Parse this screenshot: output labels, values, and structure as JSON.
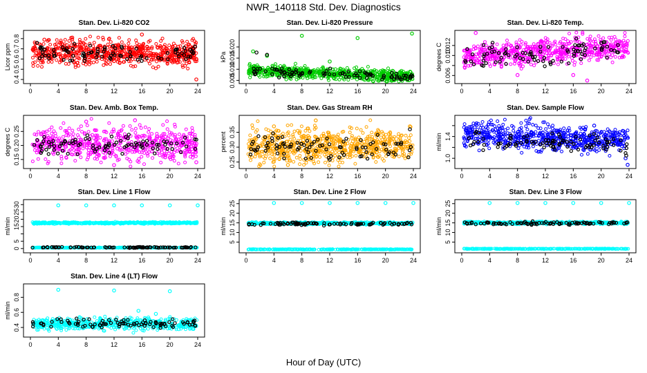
{
  "page": {
    "title": "NWR_140118  Std. Dev. Diagnostics",
    "xlabel": "Hour of Day (UTC)"
  },
  "chart_data": [
    {
      "type": "scatter",
      "title": "Stan. Dev. Li-820 CO2",
      "ylabel": "Licor ppm",
      "xlim": [
        0,
        24
      ],
      "ylim": [
        0.38,
        0.86
      ],
      "xticks": [
        "0",
        "4",
        "8",
        "12",
        "16",
        "20",
        "24"
      ],
      "yticks": [
        0.4,
        0.5,
        0.6,
        0.7,
        0.8
      ],
      "ytick_labels": [
        "0.4",
        "0.5",
        "0.6",
        "0.7",
        "0.8"
      ],
      "series": [
        {
          "color": "#ff0000",
          "style": "dense-cloud",
          "center": [
            0.66,
            0.66
          ],
          "spread": 0.06,
          "n": 700,
          "outliers": [
            [
              2,
              0.79
            ],
            [
              6,
              0.81
            ],
            [
              16,
              0.84
            ],
            [
              23.8,
              0.4
            ],
            [
              12,
              0.58
            ]
          ]
        },
        {
          "color": "#000000",
          "style": "overlay",
          "center": [
            0.66,
            0.66
          ],
          "spread": 0.04,
          "n": 90
        }
      ]
    },
    {
      "type": "scatter",
      "title": "Stan. Dev. Li-820 Pressure",
      "ylabel": "kPa",
      "xlim": [
        0,
        24
      ],
      "ylim": [
        0.0045,
        0.0265
      ],
      "xticks": [
        "0",
        "4",
        "8",
        "12",
        "16",
        "20",
        "24"
      ],
      "yticks": [
        0.005,
        0.01,
        0.015,
        0.02
      ],
      "ytick_labels": [
        "0.005",
        "0.010",
        "0.015",
        "0.020"
      ],
      "series": [
        {
          "color": "#00cc00",
          "style": "dense-cloud",
          "center": [
            0.0095,
            0.0068
          ],
          "spread": 0.0013,
          "n": 700,
          "outliers": [
            [
              1,
              0.018
            ],
            [
              3,
              0.016
            ],
            [
              8,
              0.025
            ],
            [
              16,
              0.024
            ],
            [
              23.8,
              0.026
            ],
            [
              12,
              0.0135
            ]
          ]
        },
        {
          "color": "#000000",
          "style": "overlay",
          "center": [
            0.0092,
            0.0064
          ],
          "spread": 0.0009,
          "n": 90,
          "outliers": [
            [
              1.5,
              0.0175
            ],
            [
              3,
              0.0165
            ]
          ]
        }
      ]
    },
    {
      "type": "scatter",
      "title": "Stan. Dev. Li-820 Temp.",
      "ylabel": "degrees C",
      "xlim": [
        0,
        24
      ],
      "ylim": [
        0.0048,
        0.0146
      ],
      "xticks": [
        "0",
        "4",
        "8",
        "12",
        "16",
        "20",
        "24"
      ],
      "yticks": [
        0.006,
        0.008,
        0.01,
        0.012
      ],
      "ytick_labels": [
        "0.006",
        "",
        "0.010",
        "0.012"
      ],
      "series": [
        {
          "color": "#ff00ff",
          "style": "dense-cloud",
          "center": [
            0.0098,
            0.0118
          ],
          "spread": 0.0012,
          "n": 650,
          "outliers": [
            [
              2,
              0.0145
            ],
            [
              8,
              0.0061
            ],
            [
              16,
              0.0061
            ],
            [
              18,
              0.005
            ]
          ]
        },
        {
          "color": "#000000",
          "style": "overlay",
          "center": [
            0.0095,
            0.0115
          ],
          "spread": 0.0012,
          "n": 90
        }
      ]
    },
    {
      "type": "scatter",
      "title": "Stan. Dev. Amb. Box Temp.",
      "ylabel": "degrees C",
      "xlim": [
        0,
        24
      ],
      "ylim": [
        0.125,
        0.3
      ],
      "xticks": [
        "0",
        "4",
        "8",
        "12",
        "16",
        "20",
        "24"
      ],
      "yticks": [
        0.15,
        0.2,
        0.25
      ],
      "ytick_labels": [
        "0.15",
        "0.20",
        "0.25"
      ],
      "series": [
        {
          "color": "#ff00ff",
          "style": "dense-cloud",
          "center": [
            0.205,
            0.205
          ],
          "spread": 0.03,
          "n": 600,
          "outliers": [
            [
              15,
              0.29
            ],
            [
              23.8,
              0.14
            ],
            [
              8,
              0.285
            ],
            [
              12,
              0.13
            ]
          ]
        },
        {
          "color": "#000000",
          "style": "overlay",
          "center": [
            0.2,
            0.2
          ],
          "spread": 0.018,
          "n": 90
        }
      ]
    },
    {
      "type": "scatter",
      "title": "Stan. Dev. Gas Stream RH",
      "ylabel": "percent",
      "xlim": [
        0,
        24
      ],
      "ylim": [
        0.235,
        0.4
      ],
      "xticks": [
        "0",
        "4",
        "8",
        "12",
        "16",
        "20",
        "24"
      ],
      "yticks": [
        0.25,
        0.3,
        0.35
      ],
      "ytick_labels": [
        "0.25",
        "0.30",
        "0.35"
      ],
      "series": [
        {
          "color": "#ffa500",
          "style": "dense-cloud",
          "center": [
            0.305,
            0.305
          ],
          "spread": 0.028,
          "n": 700,
          "outliers": [
            [
              10,
              0.39
            ],
            [
              6,
              0.24
            ],
            [
              23.5,
              0.37
            ],
            [
              4,
              0.37
            ]
          ]
        },
        {
          "color": "#000000",
          "style": "overlay",
          "center": [
            0.3,
            0.3
          ],
          "spread": 0.02,
          "n": 90,
          "outliers": [
            [
              12,
              0.258
            ],
            [
              23.5,
              0.36
            ]
          ]
        }
      ]
    },
    {
      "type": "scatter",
      "title": "Stan. Dev. Sample Flow",
      "ylabel": "ml/min",
      "xlim": [
        0,
        24
      ],
      "ylim": [
        0.85,
        1.75
      ],
      "xticks": [
        "0",
        "4",
        "8",
        "12",
        "16",
        "20",
        "24"
      ],
      "yticks": [
        1.0,
        1.2,
        1.4,
        1.6
      ],
      "ytick_labels": [
        "1.0",
        "",
        "1.4",
        ""
      ],
      "series": [
        {
          "color": "#0000ff",
          "style": "dense-cloud",
          "center": [
            1.45,
            1.32
          ],
          "spread": 0.12,
          "n": 650,
          "outliers": [
            [
              23.8,
              0.88
            ],
            [
              23.5,
              1.0
            ],
            [
              19,
              1.6
            ]
          ]
        },
        {
          "color": "#000000",
          "style": "overlay",
          "center": [
            1.35,
            1.25
          ],
          "spread": 0.08,
          "n": 90,
          "outliers": [
            [
              23.6,
              1.05
            ]
          ]
        }
      ]
    },
    {
      "type": "scatter",
      "title": "Stan. Dev. Line 1 Flow",
      "ylabel": "ml/min",
      "xlim": [
        0,
        24
      ],
      "ylim": [
        -1.5,
        32
      ],
      "xticks": [
        "0",
        "4",
        "8",
        "12",
        "16",
        "20",
        "24"
      ],
      "yticks": [
        0,
        5,
        10,
        15,
        20,
        25,
        30
      ],
      "ytick_labels": [
        "0",
        "5",
        "",
        "15",
        "20",
        "25",
        "30"
      ],
      "series": [
        {
          "color": "#00ffff",
          "style": "band",
          "center": [
            17.5,
            17.5
          ],
          "spread": 0.5,
          "n": 500,
          "outliers": [
            [
              4,
              29.5
            ],
            [
              8,
              29.5
            ],
            [
              12,
              29.5
            ],
            [
              16,
              29.5
            ],
            [
              20,
              29.5
            ],
            [
              24,
              29.5
            ]
          ]
        },
        {
          "color": "#00ffff",
          "style": "band",
          "center": [
            0.6,
            0.6
          ],
          "spread": 0.15,
          "n": 300
        },
        {
          "color": "#000000",
          "style": "overlay",
          "center": [
            0.8,
            0.8
          ],
          "spread": 0.15,
          "n": 90
        }
      ]
    },
    {
      "type": "scatter",
      "title": "Stan. Dev. Line 2 Flow",
      "ylabel": "ml/min",
      "xlim": [
        0,
        24
      ],
      "ylim": [
        0.5,
        26
      ],
      "xticks": [
        "0",
        "4",
        "8",
        "12",
        "16",
        "20",
        "24"
      ],
      "yticks": [
        5,
        10,
        15,
        20,
        25
      ],
      "ytick_labels": [
        "5",
        "10",
        "15",
        "20",
        "25"
      ],
      "series": [
        {
          "color": "#00ffff",
          "style": "band",
          "center": [
            14.8,
            14.8
          ],
          "spread": 0.5,
          "n": 500,
          "outliers": [
            [
              4,
              25.3
            ],
            [
              8,
              25.3
            ],
            [
              12,
              25.3
            ],
            [
              16,
              25.3
            ],
            [
              20,
              25.3
            ],
            [
              24,
              25.3
            ]
          ]
        },
        {
          "color": "#00ffff",
          "style": "band",
          "center": [
            1.2,
            1.2
          ],
          "spread": 0.12,
          "n": 300
        },
        {
          "color": "#000000",
          "style": "overlay",
          "center": [
            14.5,
            14.5
          ],
          "spread": 0.35,
          "n": 90
        }
      ]
    },
    {
      "type": "scatter",
      "title": "Stan. Dev. Line 3 Flow",
      "ylabel": "ml/min",
      "xlim": [
        0,
        24
      ],
      "ylim": [
        0.5,
        26
      ],
      "xticks": [
        "0",
        "4",
        "8",
        "12",
        "16",
        "20",
        "24"
      ],
      "yticks": [
        5,
        10,
        15,
        20,
        25
      ],
      "ytick_labels": [
        "5",
        "10",
        "15",
        "20",
        "25"
      ],
      "series": [
        {
          "color": "#00ffff",
          "style": "band",
          "center": [
            15.0,
            15.0
          ],
          "spread": 0.55,
          "n": 500,
          "outliers": [
            [
              4,
              25.3
            ],
            [
              8,
              25.3
            ],
            [
              12,
              25.3
            ],
            [
              16,
              25.3
            ],
            [
              20,
              25.3
            ],
            [
              24,
              25.3
            ]
          ]
        },
        {
          "color": "#00ffff",
          "style": "band",
          "center": [
            1.5,
            1.5
          ],
          "spread": 0.12,
          "n": 300
        },
        {
          "color": "#000000",
          "style": "overlay",
          "center": [
            14.8,
            14.8
          ],
          "spread": 0.4,
          "n": 90
        }
      ]
    },
    {
      "type": "scatter",
      "title": "Stan. Dev. Line 4 (LT) Flow",
      "ylabel": "ml/min",
      "xlim": [
        0,
        24
      ],
      "ylim": [
        0.3,
        0.95
      ],
      "xticks": [
        "0",
        "4",
        "8",
        "12",
        "16",
        "20",
        "24"
      ],
      "yticks": [
        0.4,
        0.6,
        0.8
      ],
      "ytick_labels": [
        "0.4",
        "0.6",
        "0.8"
      ],
      "series": [
        {
          "color": "#00ffff",
          "style": "dense-cloud",
          "center": [
            0.45,
            0.45
          ],
          "spread": 0.04,
          "n": 550,
          "outliers": [
            [
              4,
              0.9
            ],
            [
              12,
              0.89
            ],
            [
              20,
              0.88
            ],
            [
              15.5,
              0.62
            ],
            [
              18,
              0.58
            ]
          ]
        },
        {
          "color": "#000000",
          "style": "overlay",
          "center": [
            0.45,
            0.45
          ],
          "spread": 0.03,
          "n": 90
        }
      ]
    }
  ]
}
